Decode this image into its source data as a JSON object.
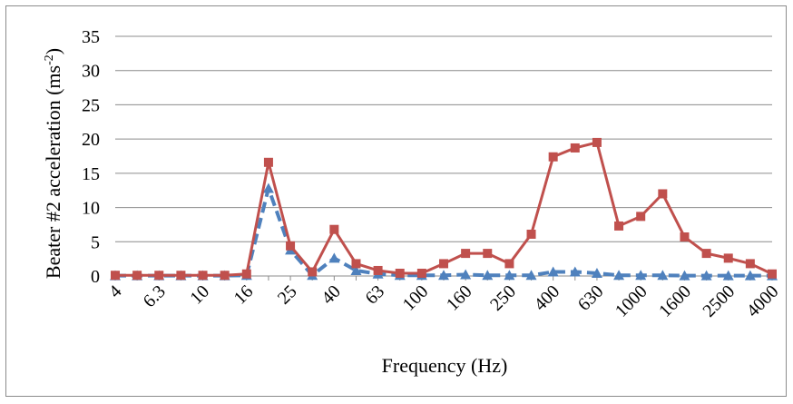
{
  "chart_data": {
    "type": "line",
    "xlabel": "Frequency (Hz)",
    "ylabel_main": "Beater #2 acceleration  (ms",
    "ylabel_sup": "-2",
    "ylabel_end": ")",
    "ylim": [
      0,
      35
    ],
    "yticks": [
      "0",
      "5",
      "10",
      "15",
      "20",
      "25",
      "30",
      "35"
    ],
    "grid": true,
    "x": [
      "4",
      "5",
      "6.3",
      "8",
      "10",
      "12.5",
      "16",
      "20",
      "25",
      "31.5",
      "40",
      "50",
      "63",
      "80",
      "100",
      "125",
      "160",
      "200",
      "250",
      "315",
      "400",
      "500",
      "630",
      "800",
      "1000",
      "1250",
      "1600",
      "2000",
      "2500",
      "3150",
      "4000"
    ],
    "xtick_labels": [
      "4",
      "",
      "6.3",
      "",
      "10",
      "",
      "16",
      "",
      "25",
      "",
      "40",
      "",
      "63",
      "",
      "100",
      "",
      "160",
      "",
      "250",
      "",
      "400",
      "",
      "630",
      "",
      "1000",
      "",
      "1600",
      "",
      "2500",
      "",
      "4000"
    ],
    "series": [
      {
        "color": "#4f81bd",
        "style": "dashed",
        "marker": "triangle",
        "values": [
          0.05,
          0.05,
          0.05,
          0.05,
          0.05,
          0.05,
          0.1,
          12.8,
          3.8,
          0.1,
          2.6,
          0.8,
          0.3,
          0.1,
          0.1,
          0.1,
          0.2,
          0.1,
          0.1,
          0.1,
          0.6,
          0.6,
          0.4,
          0.1,
          0.1,
          0.1,
          0.05,
          0.05,
          0.05,
          0.05,
          0.05
        ]
      },
      {
        "color": "#c0504d",
        "style": "solid",
        "marker": "square",
        "values": [
          0.1,
          0.1,
          0.1,
          0.1,
          0.1,
          0.1,
          0.3,
          16.6,
          4.4,
          0.6,
          6.8,
          1.8,
          0.8,
          0.4,
          0.4,
          1.8,
          3.3,
          3.3,
          1.8,
          6.1,
          17.4,
          18.7,
          19.5,
          7.3,
          8.7,
          12.0,
          5.7,
          3.3,
          2.6,
          1.8,
          0.3
        ]
      }
    ]
  }
}
